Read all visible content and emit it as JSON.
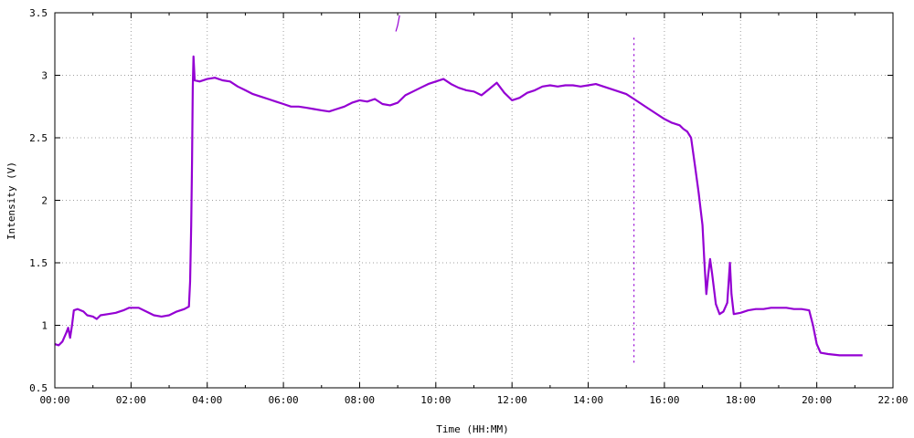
{
  "chart_data": {
    "type": "line",
    "title": "",
    "xlabel": "Time (HH:MM)",
    "ylabel": "Intensity (V)",
    "xlim": [
      0,
      22
    ],
    "ylim": [
      0.5,
      3.5
    ],
    "x_ticks": [
      {
        "value": 0,
        "label": "00:00"
      },
      {
        "value": 2,
        "label": "02:00"
      },
      {
        "value": 4,
        "label": "04:00"
      },
      {
        "value": 6,
        "label": "06:00"
      },
      {
        "value": 8,
        "label": "08:00"
      },
      {
        "value": 10,
        "label": "10:00"
      },
      {
        "value": 12,
        "label": "12:00"
      },
      {
        "value": 14,
        "label": "14:00"
      },
      {
        "value": 16,
        "label": "16:00"
      },
      {
        "value": 18,
        "label": "18:00"
      },
      {
        "value": 20,
        "label": "20:00"
      },
      {
        "value": 22,
        "label": "22:00"
      }
    ],
    "y_ticks": [
      {
        "value": 0.5,
        "label": "0.5"
      },
      {
        "value": 1.0,
        "label": "1"
      },
      {
        "value": 1.5,
        "label": "1.5"
      },
      {
        "value": 2.0,
        "label": "2"
      },
      {
        "value": 2.5,
        "label": "2.5"
      },
      {
        "value": 3.0,
        "label": "3"
      },
      {
        "value": 3.5,
        "label": "3.5"
      }
    ],
    "grid": true,
    "grid_style": "dotted",
    "legend": "none",
    "line_color": "#9400d3",
    "series": [
      {
        "name": "",
        "points": [
          [
            0.0,
            0.85
          ],
          [
            0.1,
            0.84
          ],
          [
            0.2,
            0.87
          ],
          [
            0.3,
            0.94
          ],
          [
            0.35,
            0.98
          ],
          [
            0.4,
            0.9
          ],
          [
            0.45,
            1.0
          ],
          [
            0.5,
            1.12
          ],
          [
            0.6,
            1.13
          ],
          [
            0.75,
            1.11
          ],
          [
            0.85,
            1.08
          ],
          [
            1.0,
            1.07
          ],
          [
            1.1,
            1.05
          ],
          [
            1.2,
            1.08
          ],
          [
            1.4,
            1.09
          ],
          [
            1.6,
            1.1
          ],
          [
            1.8,
            1.12
          ],
          [
            1.95,
            1.14
          ],
          [
            2.2,
            1.14
          ],
          [
            2.4,
            1.11
          ],
          [
            2.6,
            1.08
          ],
          [
            2.8,
            1.07
          ],
          [
            3.0,
            1.08
          ],
          [
            3.2,
            1.11
          ],
          [
            3.4,
            1.13
          ],
          [
            3.52,
            1.15
          ],
          [
            3.55,
            1.35
          ],
          [
            3.58,
            1.8
          ],
          [
            3.6,
            2.3
          ],
          [
            3.62,
            2.9
          ],
          [
            3.64,
            3.15
          ],
          [
            3.67,
            2.96
          ],
          [
            3.8,
            2.95
          ],
          [
            4.0,
            2.97
          ],
          [
            4.2,
            2.98
          ],
          [
            4.4,
            2.96
          ],
          [
            4.6,
            2.95
          ],
          [
            4.8,
            2.91
          ],
          [
            5.0,
            2.88
          ],
          [
            5.2,
            2.85
          ],
          [
            5.4,
            2.83
          ],
          [
            5.6,
            2.81
          ],
          [
            5.8,
            2.79
          ],
          [
            6.0,
            2.77
          ],
          [
            6.2,
            2.75
          ],
          [
            6.4,
            2.75
          ],
          [
            6.6,
            2.74
          ],
          [
            6.8,
            2.73
          ],
          [
            7.0,
            2.72
          ],
          [
            7.2,
            2.71
          ],
          [
            7.4,
            2.73
          ],
          [
            7.6,
            2.75
          ],
          [
            7.8,
            2.78
          ],
          [
            8.0,
            2.8
          ],
          [
            8.2,
            2.79
          ],
          [
            8.4,
            2.81
          ],
          [
            8.6,
            2.77
          ],
          [
            8.8,
            2.76
          ],
          [
            9.0,
            2.78
          ],
          [
            9.2,
            2.84
          ],
          [
            9.4,
            2.87
          ],
          [
            9.6,
            2.9
          ],
          [
            9.8,
            2.93
          ],
          [
            10.0,
            2.95
          ],
          [
            10.2,
            2.97
          ],
          [
            10.4,
            2.93
          ],
          [
            10.6,
            2.9
          ],
          [
            10.8,
            2.88
          ],
          [
            11.0,
            2.87
          ],
          [
            11.2,
            2.84
          ],
          [
            11.4,
            2.89
          ],
          [
            11.6,
            2.94
          ],
          [
            11.8,
            2.86
          ],
          [
            12.0,
            2.8
          ],
          [
            12.2,
            2.82
          ],
          [
            12.4,
            2.86
          ],
          [
            12.6,
            2.88
          ],
          [
            12.8,
            2.91
          ],
          [
            13.0,
            2.92
          ],
          [
            13.2,
            2.91
          ],
          [
            13.4,
            2.92
          ],
          [
            13.6,
            2.92
          ],
          [
            13.8,
            2.91
          ],
          [
            14.0,
            2.92
          ],
          [
            14.2,
            2.93
          ],
          [
            14.4,
            2.91
          ],
          [
            14.6,
            2.89
          ],
          [
            14.8,
            2.87
          ],
          [
            15.0,
            2.85
          ],
          [
            15.2,
            2.81
          ],
          [
            15.4,
            2.77
          ],
          [
            15.6,
            2.73
          ],
          [
            15.8,
            2.69
          ],
          [
            16.0,
            2.65
          ],
          [
            16.2,
            2.62
          ],
          [
            16.4,
            2.6
          ],
          [
            16.5,
            2.57
          ],
          [
            16.6,
            2.55
          ],
          [
            16.7,
            2.5
          ],
          [
            16.8,
            2.28
          ],
          [
            16.9,
            2.06
          ],
          [
            17.0,
            1.8
          ],
          [
            17.05,
            1.5
          ],
          [
            17.1,
            1.25
          ],
          [
            17.15,
            1.4
          ],
          [
            17.2,
            1.53
          ],
          [
            17.25,
            1.42
          ],
          [
            17.35,
            1.17
          ],
          [
            17.45,
            1.09
          ],
          [
            17.55,
            1.11
          ],
          [
            17.65,
            1.18
          ],
          [
            17.72,
            1.5
          ],
          [
            17.76,
            1.25
          ],
          [
            17.82,
            1.09
          ],
          [
            18.0,
            1.1
          ],
          [
            18.2,
            1.12
          ],
          [
            18.4,
            1.13
          ],
          [
            18.6,
            1.13
          ],
          [
            18.8,
            1.14
          ],
          [
            19.0,
            1.14
          ],
          [
            19.2,
            1.14
          ],
          [
            19.4,
            1.13
          ],
          [
            19.6,
            1.13
          ],
          [
            19.8,
            1.12
          ],
          [
            19.9,
            1.0
          ],
          [
            20.0,
            0.85
          ],
          [
            20.1,
            0.78
          ],
          [
            20.3,
            0.77
          ],
          [
            20.6,
            0.76
          ],
          [
            20.9,
            0.76
          ],
          [
            21.2,
            0.76
          ]
        ]
      },
      {
        "name": "",
        "points": [
          [
            8.95,
            3.35
          ],
          [
            9.0,
            3.4
          ],
          [
            9.05,
            3.48
          ]
        ]
      },
      {
        "name": "",
        "points": [
          [
            15.2,
            3.3
          ],
          [
            15.2,
            2.9
          ],
          [
            15.2,
            2.1
          ],
          [
            15.2,
            1.3
          ],
          [
            15.2,
            0.7
          ]
        ]
      }
    ]
  }
}
